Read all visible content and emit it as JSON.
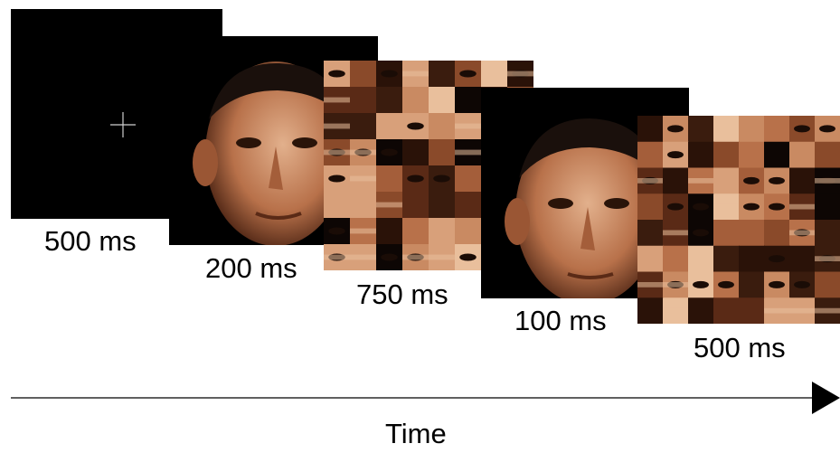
{
  "frames": [
    {
      "name": "fixation",
      "duration": "500 ms",
      "content": "fixation-cross"
    },
    {
      "name": "face-1",
      "duration": "200 ms",
      "content": "face"
    },
    {
      "name": "mask-1",
      "duration": "750 ms",
      "content": "scrambled-face-mask"
    },
    {
      "name": "face-2",
      "duration": "100 ms",
      "content": "face"
    },
    {
      "name": "mask-2",
      "duration": "500 ms",
      "content": "scrambled-face-mask"
    }
  ],
  "axis": {
    "label": "Time"
  },
  "colors": {
    "background": "#ffffff",
    "frame": "#000000",
    "skin_light": "#d8a07a",
    "skin_dark": "#5a2a16",
    "hair": "#1a100c"
  }
}
